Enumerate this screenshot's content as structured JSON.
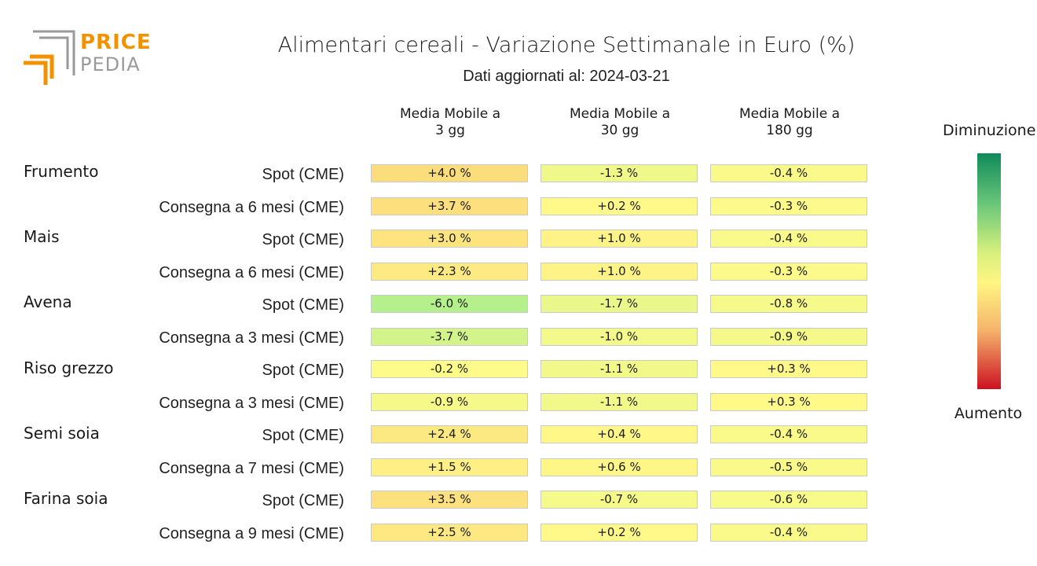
{
  "logo": {
    "line1": "PRICE",
    "line2": "PEDIA",
    "orange": "#f39200",
    "gray": "#9a9a9a"
  },
  "title": "Alimentari cereali - Variazione Settimanale in Euro (%)",
  "subtitle": "Dati aggiornati al: 2024-03-21",
  "columns": [
    {
      "line1": "Media Mobile a",
      "line2": "3 gg"
    },
    {
      "line1": "Media Mobile a",
      "line2": "30 gg"
    },
    {
      "line1": "Media Mobile a",
      "line2": "180 gg"
    }
  ],
  "legend": {
    "top": "Diminuzione",
    "bottom": "Aumento"
  },
  "groups": [
    "Frumento",
    "Mais",
    "Avena",
    "Riso grezzo",
    "Semi soia",
    "Farina soia"
  ],
  "rows": [
    {
      "label": "Spot (CME)",
      "cells": [
        "+4.0 %",
        "-1.3 %",
        "-0.4 %"
      ]
    },
    {
      "label": "Consegna a 6 mesi (CME)",
      "cells": [
        "+3.7 %",
        "+0.2 %",
        "-0.3 %"
      ]
    },
    {
      "label": "Spot (CME)",
      "cells": [
        "+3.0 %",
        "+1.0 %",
        "-0.4 %"
      ]
    },
    {
      "label": "Consegna a 6 mesi (CME)",
      "cells": [
        "+2.3 %",
        "+1.0 %",
        "-0.3 %"
      ]
    },
    {
      "label": "Spot (CME)",
      "cells": [
        "-6.0 %",
        "-1.7 %",
        "-0.8 %"
      ]
    },
    {
      "label": "Consegna a 3 mesi (CME)",
      "cells": [
        "-3.7 %",
        "-1.0 %",
        "-0.9 %"
      ]
    },
    {
      "label": "Spot (CME)",
      "cells": [
        "-0.2 %",
        "-1.1 %",
        "+0.3 %"
      ]
    },
    {
      "label": "Consegna a 3 mesi (CME)",
      "cells": [
        "-0.9 %",
        "-1.1 %",
        "+0.3 %"
      ]
    },
    {
      "label": "Spot (CME)",
      "cells": [
        "+2.4 %",
        "+0.4 %",
        "-0.4 %"
      ]
    },
    {
      "label": "Consegna a 7 mesi (CME)",
      "cells": [
        "+1.5 %",
        "+0.6 %",
        "-0.5 %"
      ]
    },
    {
      "label": "Spot (CME)",
      "cells": [
        "+3.5 %",
        "-0.7 %",
        "-0.6 %"
      ]
    },
    {
      "label": "Consegna a 9 mesi (CME)",
      "cells": [
        "+2.5 %",
        "+0.2 %",
        "-0.4 %"
      ]
    }
  ],
  "chart_data": {
    "type": "heatmap",
    "title": "Alimentari cereali - Variazione Settimanale in Euro (%)",
    "subtitle": "Dati aggiornati al: 2024-03-21",
    "columns": [
      "Media Mobile a 3 gg",
      "Media Mobile a 30 gg",
      "Media Mobile a 180 gg"
    ],
    "row_groups": [
      "Frumento",
      "Frumento",
      "Mais",
      "Mais",
      "Avena",
      "Avena",
      "Riso grezzo",
      "Riso grezzo",
      "Semi soia",
      "Semi soia",
      "Farina soia",
      "Farina soia"
    ],
    "rows": [
      "Spot (CME)",
      "Consegna a 6 mesi (CME)",
      "Spot (CME)",
      "Consegna a 6 mesi (CME)",
      "Spot (CME)",
      "Consegna a 3 mesi (CME)",
      "Spot (CME)",
      "Consegna a 3 mesi (CME)",
      "Spot (CME)",
      "Consegna a 7 mesi (CME)",
      "Spot (CME)",
      "Consegna a 9 mesi (CME)"
    ],
    "values": [
      [
        4.0,
        -1.3,
        -0.4
      ],
      [
        3.7,
        0.2,
        -0.3
      ],
      [
        3.0,
        1.0,
        -0.4
      ],
      [
        2.3,
        1.0,
        -0.3
      ],
      [
        -6.0,
        -1.7,
        -0.8
      ],
      [
        -3.7,
        -1.0,
        -0.9
      ],
      [
        -0.2,
        -1.1,
        0.3
      ],
      [
        -0.9,
        -1.1,
        0.3
      ],
      [
        2.4,
        0.4,
        -0.4
      ],
      [
        1.5,
        0.6,
        -0.5
      ],
      [
        3.5,
        -0.7,
        -0.6
      ],
      [
        2.5,
        0.2,
        -0.4
      ]
    ],
    "unit": "%",
    "colorscale": {
      "top_label": "Diminuzione",
      "bottom_label": "Aumento",
      "colors": [
        "#0f8a5a",
        "#6cc87a",
        "#d7f07e",
        "#fff582",
        "#f5b46c",
        "#cc1122"
      ]
    }
  }
}
